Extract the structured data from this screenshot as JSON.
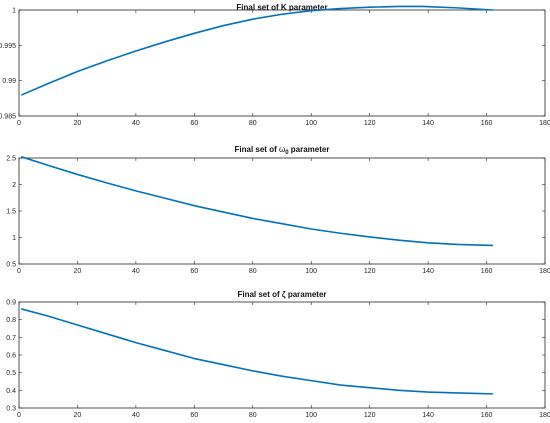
{
  "chart_data": [
    {
      "type": "line",
      "title": "Final set of K parameter",
      "xlim": [
        0,
        180
      ],
      "ylim": [
        0.985,
        1.0
      ],
      "xticks": [
        0,
        20,
        40,
        60,
        80,
        100,
        120,
        140,
        160,
        180
      ],
      "xtick_labels": [
        "0",
        "20",
        "40",
        "60",
        "80",
        "100",
        "120",
        "140",
        "160",
        "180"
      ],
      "yticks": [
        0.985,
        0.99,
        0.995,
        1.0
      ],
      "ytick_labels": [
        "0.985",
        "0.99",
        "0.995",
        "1"
      ],
      "grid": false,
      "series": [
        {
          "color": "#0072BD",
          "x": [
            1,
            10,
            20,
            30,
            40,
            50,
            60,
            70,
            80,
            90,
            100,
            110,
            120,
            130,
            138,
            150,
            162
          ],
          "y": [
            0.988,
            0.9896,
            0.9913,
            0.9928,
            0.9942,
            0.9955,
            0.9967,
            0.9978,
            0.9987,
            0.9994,
            0.9999,
            1.0002,
            1.0004,
            1.0005,
            1.0005,
            1.0003,
            1.0
          ]
        }
      ]
    },
    {
      "type": "line",
      "title_prefix": "Final set of ",
      "title_symbol": "ω",
      "title_subscript": "0",
      "title_suffix": " parameter",
      "xlim": [
        0,
        180
      ],
      "ylim": [
        0.5,
        2.5
      ],
      "xticks": [
        0,
        20,
        40,
        60,
        80,
        100,
        120,
        140,
        160,
        180
      ],
      "xtick_labels": [
        "0",
        "20",
        "40",
        "60",
        "80",
        "100",
        "120",
        "140",
        "160",
        "180"
      ],
      "yticks": [
        0.5,
        1,
        1.5,
        2,
        2.5
      ],
      "ytick_labels": [
        "0.5",
        "1",
        "1.5",
        "2",
        "2.5"
      ],
      "grid": false,
      "series": [
        {
          "color": "#0072BD",
          "x": [
            1,
            10,
            20,
            30,
            40,
            50,
            60,
            70,
            80,
            90,
            100,
            110,
            120,
            130,
            140,
            150,
            162
          ],
          "y": [
            2.52,
            2.36,
            2.19,
            2.03,
            1.88,
            1.74,
            1.6,
            1.48,
            1.36,
            1.26,
            1.16,
            1.08,
            1.01,
            0.95,
            0.9,
            0.87,
            0.85
          ]
        }
      ]
    },
    {
      "type": "line",
      "title": "Final set of ζ parameter",
      "xlim": [
        0,
        180
      ],
      "ylim": [
        0.3,
        0.9
      ],
      "xticks": [
        0,
        20,
        40,
        60,
        80,
        100,
        120,
        140,
        160,
        180
      ],
      "xtick_labels": [
        "0",
        "20",
        "40",
        "60",
        "80",
        "100",
        "120",
        "140",
        "160",
        "180"
      ],
      "yticks": [
        0.3,
        0.4,
        0.5,
        0.6,
        0.7,
        0.8,
        0.9
      ],
      "ytick_labels": [
        "0.3",
        "0.4",
        "0.5",
        "0.6",
        "0.7",
        "0.8",
        "0.9"
      ],
      "grid": false,
      "series": [
        {
          "color": "#0072BD",
          "x": [
            1,
            10,
            20,
            30,
            40,
            50,
            60,
            70,
            80,
            90,
            100,
            110,
            120,
            130,
            140,
            150,
            162
          ],
          "y": [
            0.86,
            0.82,
            0.77,
            0.72,
            0.67,
            0.625,
            0.58,
            0.545,
            0.51,
            0.48,
            0.455,
            0.43,
            0.415,
            0.4,
            0.39,
            0.385,
            0.38
          ]
        }
      ]
    }
  ]
}
